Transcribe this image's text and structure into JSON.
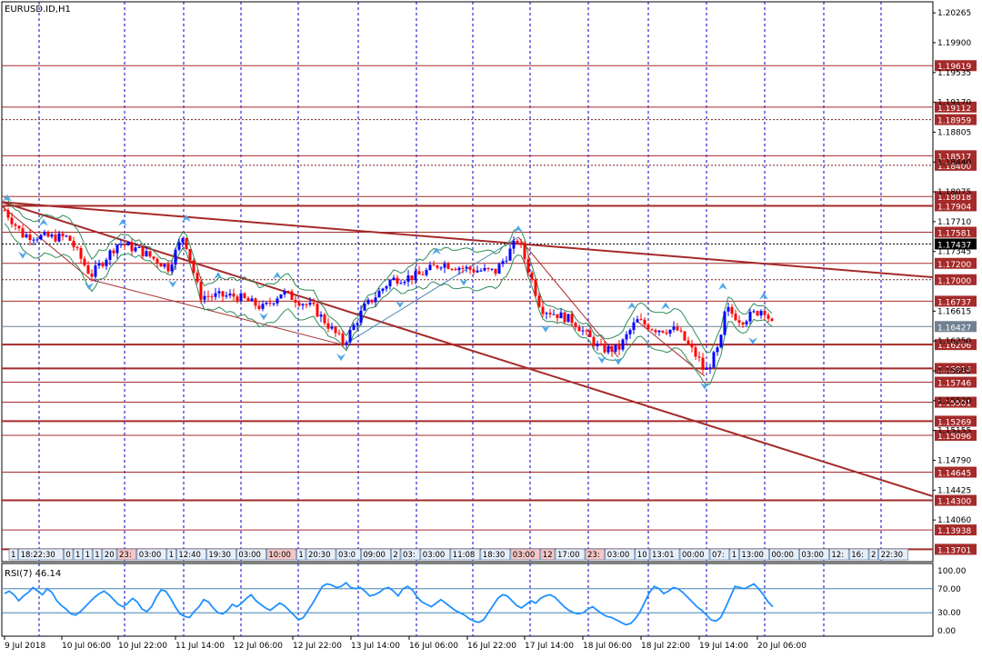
{
  "chart_data": {
    "type": "candlestick",
    "title": "EURUSD.ID,H1",
    "price_axis": {
      "ylim": [
        1.1355,
        1.204
      ],
      "tick_labels": [
        "1.20265",
        "1.19900",
        "1.19535",
        "1.19170",
        "1.18805",
        "1.18440",
        "1.18075",
        "1.17710",
        "1.17345",
        "1.16615",
        "1.16250",
        "1.15885",
        "1.15520",
        "1.15155",
        "1.14790",
        "1.14425",
        "1.14060"
      ]
    },
    "levels": [
      {
        "value": 1.19619,
        "label": "1.19619",
        "style": "solid"
      },
      {
        "value": 1.19112,
        "label": "1.19112",
        "style": "solid"
      },
      {
        "value": 1.18959,
        "label": "1.18959",
        "style": "dashed"
      },
      {
        "value": 1.18517,
        "label": "1.18517",
        "style": "solid"
      },
      {
        "value": 1.184,
        "label": "1.18400",
        "style": "dashed"
      },
      {
        "value": 1.18018,
        "label": "1.18018",
        "style": "solid"
      },
      {
        "value": 1.17904,
        "label": "1.17904",
        "style": "thick"
      },
      {
        "value": 1.17581,
        "label": "1.17581",
        "style": "solid"
      },
      {
        "value": 1.17437,
        "label": "1.17437",
        "style": "dashed-black"
      },
      {
        "value": 1.172,
        "label": "1.17200",
        "style": "solid"
      },
      {
        "value": 1.17,
        "label": "1.17000",
        "style": "dashed"
      },
      {
        "value": 1.16737,
        "label": "1.16737",
        "style": "solid"
      },
      {
        "value": 1.16427,
        "label": "1.16427",
        "style": "current"
      },
      {
        "value": 1.16206,
        "label": "1.16206",
        "style": "thick"
      },
      {
        "value": 1.15914,
        "label": "1.15914",
        "style": "thick"
      },
      {
        "value": 1.15746,
        "label": "1.15746",
        "style": "solid"
      },
      {
        "value": 1.15501,
        "label": "1.15501",
        "style": "solid"
      },
      {
        "value": 1.15269,
        "label": "1.15269",
        "style": "thick"
      },
      {
        "value": 1.15096,
        "label": "1.15096",
        "style": "solid"
      },
      {
        "value": 1.14645,
        "label": "1.14645",
        "style": "solid"
      },
      {
        "value": 1.143,
        "label": "1.14300",
        "style": "thick"
      },
      {
        "value": 1.13938,
        "label": "1.13938",
        "style": "solid"
      },
      {
        "value": 1.13701,
        "label": "1.13701",
        "style": "thick"
      }
    ],
    "time_labels": [
      "9 Jul 2018",
      "10 Jul 06:00",
      "10 Jul 22:00",
      "11 Jul 14:00",
      "12 Jul 06:00",
      "12 Jul 22:00",
      "13 Jul 14:00",
      "16 Jul 06:00",
      "16 Jul 22:00",
      "17 Jul 14:00",
      "18 Jul 06:00",
      "18 Jul 22:00",
      "19 Jul 14:00",
      "20 Jul 06:00"
    ],
    "session_strip": [
      "1",
      "18:22:30",
      "0",
      "1",
      "1",
      "1",
      "20",
      "23:",
      "03:00",
      "1",
      "12:40",
      "19:30",
      "03:00",
      "10:00",
      "1",
      "20:30",
      "03:0",
      "09:00",
      "2",
      "03:",
      "03:00",
      "11:08",
      "18:30",
      "03:00",
      "12",
      "17:00",
      "23:",
      "03:00",
      "10",
      "13:01",
      "00:00",
      "07:",
      "1",
      "13:00",
      "00:00",
      "03:00",
      "12:",
      "16:",
      "2",
      "22:30"
    ],
    "rsi": {
      "label": "RSI(7) 46.14",
      "levels": [
        "100.00",
        "70.00",
        "30.00",
        "0.00"
      ],
      "values": [
        62,
        66,
        60,
        50,
        58,
        64,
        72,
        66,
        60,
        70,
        64,
        50,
        42,
        36,
        28,
        26,
        32,
        40,
        48,
        56,
        62,
        66,
        60,
        52,
        44,
        40,
        46,
        54,
        48,
        36,
        32,
        40,
        56,
        68,
        66,
        54,
        40,
        28,
        24,
        22,
        32,
        40,
        52,
        48,
        38,
        30,
        28,
        34,
        44,
        40,
        46,
        54,
        60,
        50,
        44,
        38,
        34,
        40,
        46,
        42,
        34,
        26,
        18,
        22,
        34,
        46,
        60,
        74,
        78,
        76,
        72,
        74,
        80,
        72,
        70,
        72,
        66,
        58,
        60,
        64,
        70,
        72,
        66,
        58,
        70,
        74,
        68,
        56,
        48,
        44,
        40,
        46,
        52,
        46,
        40,
        34,
        30,
        26,
        20,
        16,
        14,
        18,
        30,
        42,
        54,
        60,
        58,
        50,
        42,
        38,
        44,
        50,
        46,
        54,
        58,
        60,
        56,
        48,
        40,
        34,
        30,
        28,
        30,
        36,
        40,
        34,
        28,
        24,
        22,
        18,
        14,
        10,
        12,
        20,
        32,
        48,
        64,
        74,
        70,
        62,
        66,
        72,
        70,
        64,
        56,
        48,
        40,
        34,
        26,
        18,
        16,
        22,
        38,
        56,
        74,
        72,
        70,
        74,
        78,
        70,
        60,
        48,
        40
      ]
    }
  }
}
